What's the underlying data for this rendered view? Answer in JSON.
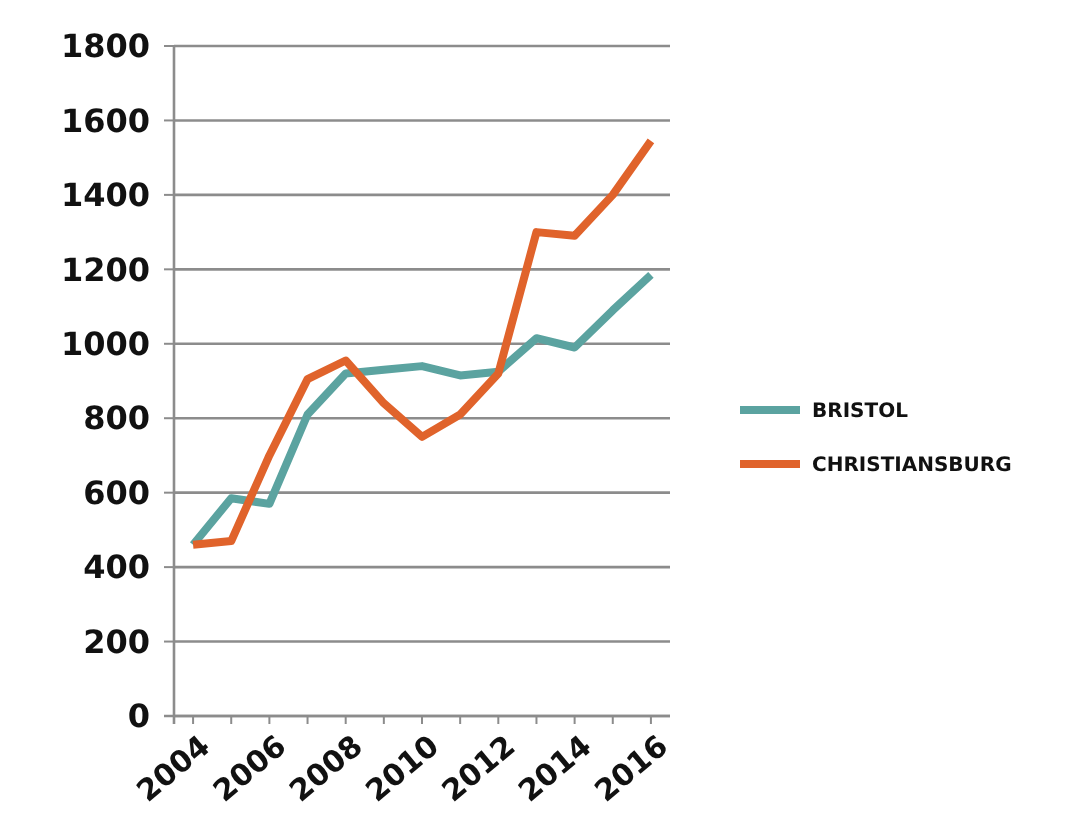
{
  "chart_data": {
    "type": "line",
    "categories": [
      "2004",
      null,
      "2006",
      null,
      "2008",
      null,
      "2010",
      null,
      "2012",
      null,
      "2014",
      null,
      "2016"
    ],
    "series": [
      {
        "name": "BRISTOL",
        "color": "#5ba3a0",
        "values": [
          460,
          585,
          570,
          810,
          920,
          930,
          940,
          915,
          925,
          1015,
          990,
          1090,
          1185
        ]
      },
      {
        "name": "CHRISTIANSBURG",
        "color": "#e0632b",
        "values": [
          460,
          470,
          700,
          905,
          955,
          840,
          750,
          810,
          920,
          1300,
          1290,
          1400,
          1545
        ]
      }
    ],
    "ylim": [
      0,
      1800
    ],
    "yticks": [
      0,
      200,
      400,
      600,
      800,
      1000,
      1200,
      1400,
      1600,
      1800
    ],
    "grid": "y",
    "legend": "right",
    "marker": "none",
    "line_style": "solid"
  }
}
